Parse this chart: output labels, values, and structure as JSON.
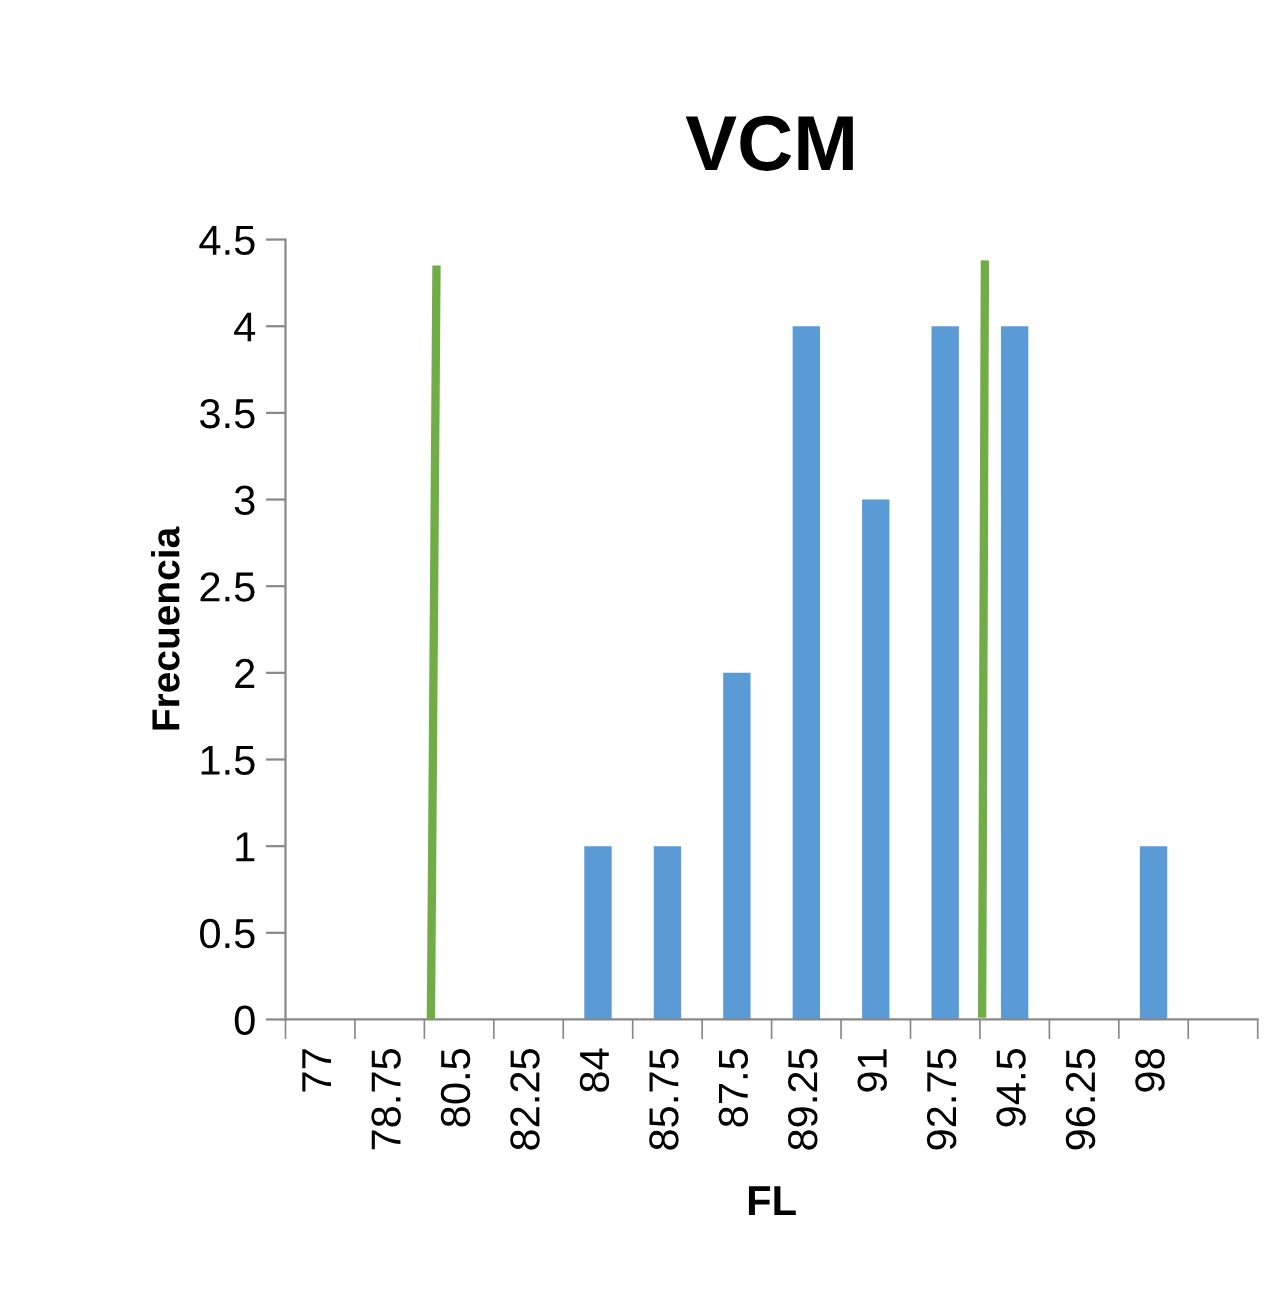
{
  "chart_data": {
    "type": "bar",
    "title": "VCM",
    "xlabel": "FL",
    "ylabel": "Frecuencia",
    "x": [
      77,
      78.75,
      80.5,
      82.25,
      84,
      85.75,
      87.5,
      89.25,
      91,
      92.75,
      94.5,
      96.25,
      98
    ],
    "series": [
      {
        "color": "#5b9bd5",
        "values": [
          0,
          0,
          0,
          0,
          1,
          1,
          2,
          4,
          3,
          4,
          4,
          0,
          1
        ]
      },
      {
        "type": "line",
        "color": "#70ad47",
        "x": [
          79.79,
          79.93
        ],
        "values": [
          0,
          4.35
        ]
      },
      {
        "type": "line",
        "color": "#70ad47",
        "x": [
          93.68,
          93.75
        ],
        "values": [
          0.01,
          4.38
        ]
      }
    ],
    "xlim": [
      76.125,
      100.625
    ],
    "xticks": [
      {
        "value": 76.125,
        "label": null
      },
      77,
      {
        "value": 77.875,
        "label": null
      },
      78.75,
      {
        "value": 79.625,
        "label": null
      },
      80.5,
      {
        "value": 81.375,
        "label": null
      },
      82.25,
      {
        "value": 83.125,
        "label": null
      },
      84,
      {
        "value": 84.875,
        "label": null
      },
      85.75,
      {
        "value": 86.625,
        "label": null
      },
      87.5,
      {
        "value": 88.375,
        "label": null
      },
      89.25,
      {
        "value": 90.125,
        "label": null
      },
      91,
      {
        "value": 91.875,
        "label": null
      },
      92.75,
      {
        "value": 93.625,
        "label": null
      },
      94.5,
      {
        "value": 95.375,
        "label": null
      },
      96.25,
      {
        "value": 97.125,
        "label": null
      },
      98,
      {
        "value": 98.875,
        "label": null
      },
      {
        "value": 100.625,
        "label": null
      }
    ],
    "ylim": [
      0,
      4.5
    ],
    "yticks": [
      0,
      0.5,
      1,
      1.5,
      2,
      2.5,
      3,
      3.5,
      4,
      4.5
    ],
    "grid": false,
    "legend": false
  }
}
